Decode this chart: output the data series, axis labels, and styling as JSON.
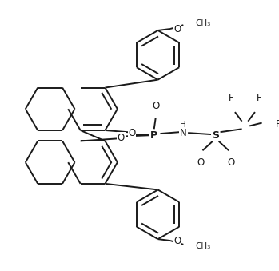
{
  "bg_color": "#ffffff",
  "line_color": "#1a1a1a",
  "line_width": 1.4,
  "figure_size": [
    3.49,
    3.39
  ],
  "dpi": 100,
  "xlim": [
    0,
    349
  ],
  "ylim": [
    0,
    339
  ]
}
